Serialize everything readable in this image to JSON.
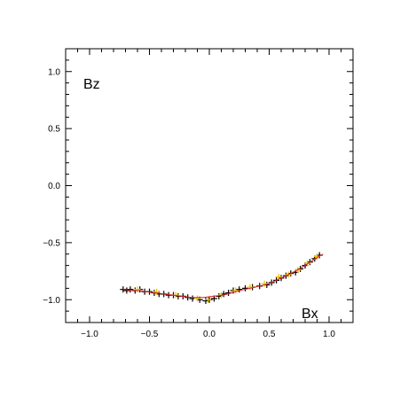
{
  "chart_data": {
    "type": "scatter",
    "title": "",
    "xlabel": "Bx",
    "ylabel": "Bz",
    "xlim": [
      -1.2,
      1.2
    ],
    "ylim": [
      -1.2,
      1.2
    ],
    "grid": false,
    "x_ticks": [
      "−1.0",
      "−0.5",
      "0.0",
      "0.5",
      "1.0"
    ],
    "y_ticks": [
      "1.0",
      "0.5",
      "0.0",
      "−0.5",
      "−1.0"
    ],
    "x_tick_values": [
      -1.0,
      -0.5,
      0.0,
      0.5,
      1.0
    ],
    "y_tick_values": [
      1.0,
      0.5,
      0.0,
      -0.5,
      -1.0
    ],
    "colors": {
      "black_markers": "#000000",
      "yellow_markers": "#f2c200",
      "red_curve": "#e02020",
      "axes": "#000000"
    },
    "series": [
      {
        "marker": "+",
        "color": "#000000",
        "points": [
          [
            -0.72,
            -0.91
          ],
          [
            -0.69,
            -0.92
          ],
          [
            -0.66,
            -0.91
          ],
          [
            -0.62,
            -0.92
          ],
          [
            -0.58,
            -0.91
          ],
          [
            -0.54,
            -0.93
          ],
          [
            -0.5,
            -0.93
          ],
          [
            -0.46,
            -0.94
          ],
          [
            -0.42,
            -0.95
          ],
          [
            -0.38,
            -0.95
          ],
          [
            -0.34,
            -0.96
          ],
          [
            -0.3,
            -0.96
          ],
          [
            -0.26,
            -0.97
          ],
          [
            -0.22,
            -0.97
          ],
          [
            -0.18,
            -0.98
          ],
          [
            -0.14,
            -0.99
          ],
          [
            -0.08,
            -1.0
          ],
          [
            -0.03,
            -1.01
          ],
          [
            0.0,
            -1.0
          ],
          [
            0.04,
            -0.99
          ],
          [
            0.08,
            -0.97
          ],
          [
            0.12,
            -0.95
          ],
          [
            0.16,
            -0.94
          ],
          [
            0.2,
            -0.92
          ],
          [
            0.25,
            -0.91
          ],
          [
            0.3,
            -0.9
          ],
          [
            0.36,
            -0.89
          ],
          [
            0.42,
            -0.88
          ],
          [
            0.48,
            -0.87
          ],
          [
            0.52,
            -0.85
          ],
          [
            0.56,
            -0.83
          ],
          [
            0.6,
            -0.81
          ],
          [
            0.64,
            -0.79
          ],
          [
            0.68,
            -0.77
          ],
          [
            0.72,
            -0.76
          ],
          [
            0.76,
            -0.73
          ],
          [
            0.8,
            -0.7
          ],
          [
            0.84,
            -0.67
          ],
          [
            0.88,
            -0.64
          ],
          [
            0.92,
            -0.61
          ]
        ]
      },
      {
        "marker": "+",
        "color": "#f2c200",
        "points": [
          [
            -0.6,
            -0.91
          ],
          [
            -0.44,
            -0.93
          ],
          [
            -0.28,
            -0.96
          ],
          [
            -0.1,
            -0.99
          ],
          [
            -0.01,
            -1.0
          ],
          [
            0.1,
            -0.96
          ],
          [
            0.22,
            -0.92
          ],
          [
            0.34,
            -0.89
          ],
          [
            0.46,
            -0.86
          ],
          [
            0.58,
            -0.8
          ],
          [
            0.66,
            -0.78
          ],
          [
            0.74,
            -0.74
          ],
          [
            0.82,
            -0.68
          ],
          [
            0.9,
            -0.62
          ]
        ]
      },
      {
        "type": "line",
        "color": "#e02020",
        "points": [
          [
            -0.72,
            -0.91
          ],
          [
            -0.6,
            -0.92
          ],
          [
            -0.45,
            -0.94
          ],
          [
            -0.3,
            -0.96
          ],
          [
            -0.15,
            -0.98
          ],
          [
            -0.05,
            -0.98
          ],
          [
            0.03,
            -0.97
          ],
          [
            0.12,
            -0.96
          ],
          [
            0.25,
            -0.92
          ],
          [
            0.38,
            -0.89
          ],
          [
            0.5,
            -0.86
          ],
          [
            0.6,
            -0.81
          ],
          [
            0.7,
            -0.76
          ],
          [
            0.8,
            -0.7
          ],
          [
            0.9,
            -0.63
          ],
          [
            0.95,
            -0.6
          ]
        ]
      }
    ]
  }
}
